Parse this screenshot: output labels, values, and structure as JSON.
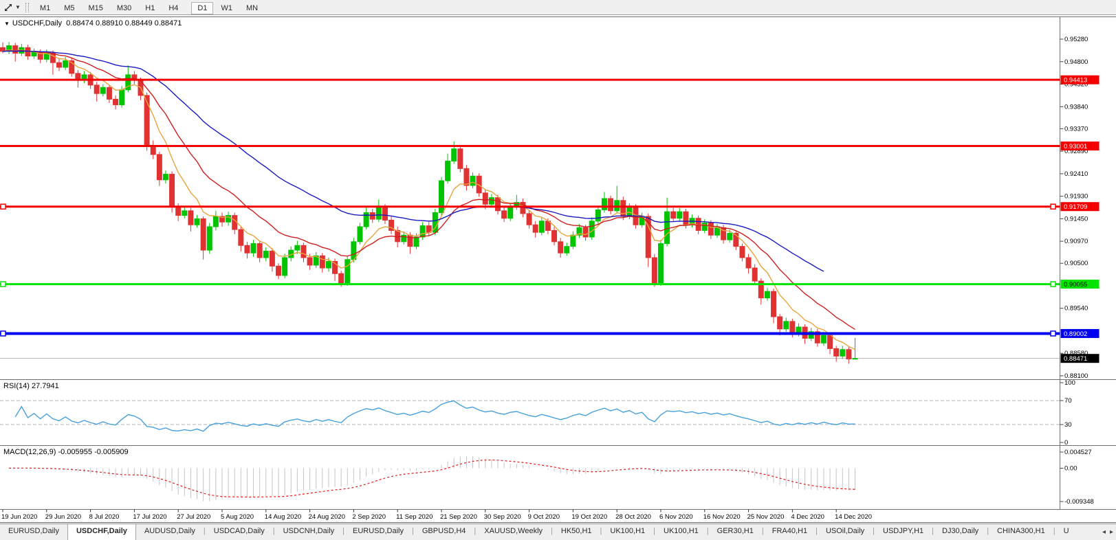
{
  "toolbar": {
    "timeframes": [
      "M1",
      "M5",
      "M15",
      "M30",
      "H1",
      "H4",
      "D1",
      "W1",
      "MN"
    ],
    "active": "D1",
    "cursor_tool_icon": "chart-cursor-icon"
  },
  "info_line": {
    "symbol": "USDCHF,Daily",
    "ohlc_text": "0.88474 0.88910 0.88449 0.88471"
  },
  "chart_data": {
    "type": "candlestick",
    "symbol": "USDCHF",
    "timeframe": "Daily",
    "ohlc_display": {
      "open": "0.88474",
      "high": "0.88910",
      "low": "0.88449",
      "close": "0.88471"
    },
    "bull_color": "#00c400",
    "bear_color": "#e03232",
    "x_ticks": [
      "19 Jun 2020",
      "29 Jun 2020",
      "8 Jul 2020",
      "17 Jul 2020",
      "27 Jul 2020",
      "5 Aug 2020",
      "14 Aug 2020",
      "24 Aug 2020",
      "2 Sep 2020",
      "11 Sep 2020",
      "21 Sep 2020",
      "30 Sep 2020",
      "9 Oct 2020",
      "19 Oct 2020",
      "28 Oct 2020",
      "6 Nov 2020",
      "16 Nov 2020",
      "25 Nov 2020",
      "4 Dec 2020",
      "14 Dec 2020"
    ],
    "bars_per_tick": 7,
    "y_ticks": [
      "0.95280",
      "0.94800",
      "0.94320",
      "0.93840",
      "0.93370",
      "0.92890",
      "0.92410",
      "0.91930",
      "0.91450",
      "0.90970",
      "0.90500",
      "0.89540",
      "0.88580",
      "0.88100"
    ],
    "candles": [
      [
        0.951,
        0.9521,
        0.9498,
        0.9502
      ],
      [
        0.9502,
        0.9522,
        0.9496,
        0.9514
      ],
      [
        0.9514,
        0.952,
        0.948,
        0.9498
      ],
      [
        0.9498,
        0.9518,
        0.9492,
        0.951
      ],
      [
        0.951,
        0.9516,
        0.9484,
        0.9492
      ],
      [
        0.9492,
        0.9508,
        0.9486,
        0.95
      ],
      [
        0.95,
        0.9506,
        0.9477,
        0.9485
      ],
      [
        0.9485,
        0.9506,
        0.9479,
        0.9498
      ],
      [
        0.9498,
        0.9504,
        0.9452,
        0.9478
      ],
      [
        0.9478,
        0.9486,
        0.946,
        0.9468
      ],
      [
        0.9468,
        0.949,
        0.9462,
        0.9482
      ],
      [
        0.9482,
        0.9488,
        0.9448,
        0.9455
      ],
      [
        0.9455,
        0.9462,
        0.9425,
        0.944
      ],
      [
        0.944,
        0.946,
        0.9434,
        0.9452
      ],
      [
        0.9452,
        0.9458,
        0.9422,
        0.943
      ],
      [
        0.943,
        0.9437,
        0.9395,
        0.9412
      ],
      [
        0.9412,
        0.9432,
        0.9406,
        0.9425
      ],
      [
        0.9425,
        0.9431,
        0.9392,
        0.94
      ],
      [
        0.94,
        0.9408,
        0.9378,
        0.9388
      ],
      [
        0.9388,
        0.9428,
        0.9382,
        0.942
      ],
      [
        0.942,
        0.9472,
        0.9415,
        0.9452
      ],
      [
        0.9452,
        0.946,
        0.9432,
        0.944
      ],
      [
        0.944,
        0.9446,
        0.9398,
        0.9408
      ],
      [
        0.9408,
        0.9414,
        0.929,
        0.93
      ],
      [
        0.93,
        0.9312,
        0.9272,
        0.9282
      ],
      [
        0.9282,
        0.9288,
        0.9215,
        0.9228
      ],
      [
        0.9228,
        0.9248,
        0.922,
        0.924
      ],
      [
        0.924,
        0.9246,
        0.9158,
        0.917
      ],
      [
        0.917,
        0.9178,
        0.914,
        0.9152
      ],
      [
        0.9152,
        0.9172,
        0.9146,
        0.9162
      ],
      [
        0.9162,
        0.9168,
        0.9118,
        0.9132
      ],
      [
        0.9132,
        0.9153,
        0.9126,
        0.9145
      ],
      [
        0.9145,
        0.915,
        0.9058,
        0.9078
      ],
      [
        0.9078,
        0.9136,
        0.907,
        0.9128
      ],
      [
        0.9128,
        0.9162,
        0.912,
        0.915
      ],
      [
        0.915,
        0.9158,
        0.9128,
        0.9138
      ],
      [
        0.9138,
        0.916,
        0.913,
        0.9152
      ],
      [
        0.9152,
        0.9158,
        0.9112,
        0.9122
      ],
      [
        0.9122,
        0.9128,
        0.9075,
        0.9088
      ],
      [
        0.9088,
        0.9096,
        0.906,
        0.9072
      ],
      [
        0.9072,
        0.91,
        0.9064,
        0.9092
      ],
      [
        0.9092,
        0.9098,
        0.9052,
        0.9062
      ],
      [
        0.9062,
        0.9084,
        0.9054,
        0.9076
      ],
      [
        0.9076,
        0.9082,
        0.9032,
        0.9044
      ],
      [
        0.9044,
        0.905,
        0.9016,
        0.9024
      ],
      [
        0.9024,
        0.907,
        0.9018,
        0.9062
      ],
      [
        0.9062,
        0.9086,
        0.9054,
        0.9078
      ],
      [
        0.9078,
        0.9098,
        0.907,
        0.9088
      ],
      [
        0.9088,
        0.9094,
        0.9052,
        0.9062
      ],
      [
        0.9062,
        0.907,
        0.9036,
        0.9046
      ],
      [
        0.9046,
        0.9074,
        0.904,
        0.9066
      ],
      [
        0.9066,
        0.9072,
        0.903,
        0.904
      ],
      [
        0.904,
        0.9062,
        0.9032,
        0.9054
      ],
      [
        0.9054,
        0.906,
        0.9012,
        0.9028
      ],
      [
        0.9028,
        0.9034,
        0.9,
        0.9008
      ],
      [
        0.9008,
        0.9066,
        0.9002,
        0.9058
      ],
      [
        0.9058,
        0.9104,
        0.9052,
        0.9096
      ],
      [
        0.9096,
        0.9136,
        0.909,
        0.9128
      ],
      [
        0.9128,
        0.9172,
        0.9122,
        0.9158
      ],
      [
        0.9158,
        0.9166,
        0.9136,
        0.9144
      ],
      [
        0.9144,
        0.9186,
        0.9138,
        0.917
      ],
      [
        0.917,
        0.9176,
        0.9134,
        0.9142
      ],
      [
        0.9142,
        0.915,
        0.9112,
        0.912
      ],
      [
        0.912,
        0.9128,
        0.9084,
        0.9096
      ],
      [
        0.9096,
        0.9118,
        0.909,
        0.911
      ],
      [
        0.911,
        0.9116,
        0.907,
        0.9086
      ],
      [
        0.9086,
        0.9114,
        0.908,
        0.9106
      ],
      [
        0.9106,
        0.9138,
        0.91,
        0.913
      ],
      [
        0.913,
        0.9138,
        0.9108,
        0.9116
      ],
      [
        0.9116,
        0.9166,
        0.911,
        0.9158
      ],
      [
        0.9158,
        0.9234,
        0.9152,
        0.9226
      ],
      [
        0.9226,
        0.9284,
        0.922,
        0.9268
      ],
      [
        0.9268,
        0.931,
        0.9262,
        0.9294
      ],
      [
        0.9294,
        0.93,
        0.9244,
        0.9252
      ],
      [
        0.9252,
        0.926,
        0.9205,
        0.9216
      ],
      [
        0.9216,
        0.9244,
        0.921,
        0.9236
      ],
      [
        0.9236,
        0.9242,
        0.9192,
        0.92
      ],
      [
        0.92,
        0.9208,
        0.9165,
        0.9176
      ],
      [
        0.9176,
        0.9198,
        0.917,
        0.919
      ],
      [
        0.919,
        0.9196,
        0.9154,
        0.9162
      ],
      [
        0.9162,
        0.917,
        0.9138,
        0.9146
      ],
      [
        0.9146,
        0.9178,
        0.914,
        0.917
      ],
      [
        0.917,
        0.9196,
        0.9164,
        0.918
      ],
      [
        0.918,
        0.9188,
        0.9148,
        0.9156
      ],
      [
        0.9156,
        0.9164,
        0.9124,
        0.9132
      ],
      [
        0.9132,
        0.914,
        0.9105,
        0.9116
      ],
      [
        0.9116,
        0.9148,
        0.911,
        0.914
      ],
      [
        0.914,
        0.9146,
        0.9112,
        0.912
      ],
      [
        0.912,
        0.9128,
        0.9088,
        0.9096
      ],
      [
        0.9096,
        0.9104,
        0.9062,
        0.9072
      ],
      [
        0.9072,
        0.9094,
        0.9066,
        0.9086
      ],
      [
        0.9086,
        0.9118,
        0.908,
        0.911
      ],
      [
        0.911,
        0.9134,
        0.9104,
        0.9126
      ],
      [
        0.9126,
        0.9132,
        0.9098,
        0.9106
      ],
      [
        0.9106,
        0.9148,
        0.91,
        0.914
      ],
      [
        0.914,
        0.9172,
        0.9134,
        0.9164
      ],
      [
        0.9164,
        0.9202,
        0.9158,
        0.9188
      ],
      [
        0.9188,
        0.9194,
        0.9154,
        0.9162
      ],
      [
        0.9162,
        0.9215,
        0.9156,
        0.9184
      ],
      [
        0.9184,
        0.9192,
        0.9142,
        0.915
      ],
      [
        0.915,
        0.9178,
        0.9144,
        0.917
      ],
      [
        0.917,
        0.9176,
        0.9124,
        0.9132
      ],
      [
        0.9132,
        0.9158,
        0.9126,
        0.915
      ],
      [
        0.915,
        0.9156,
        0.9042,
        0.9062
      ],
      [
        0.9062,
        0.907,
        0.9,
        0.9008
      ],
      [
        0.9008,
        0.91,
        0.9002,
        0.9092
      ],
      [
        0.9092,
        0.919,
        0.9086,
        0.916
      ],
      [
        0.916,
        0.9168,
        0.9138,
        0.9146
      ],
      [
        0.9146,
        0.9168,
        0.914,
        0.916
      ],
      [
        0.916,
        0.9166,
        0.9124,
        0.9132
      ],
      [
        0.9132,
        0.9154,
        0.9126,
        0.9146
      ],
      [
        0.9146,
        0.9152,
        0.9112,
        0.912
      ],
      [
        0.912,
        0.9144,
        0.9114,
        0.9136
      ],
      [
        0.9136,
        0.9142,
        0.9102,
        0.911
      ],
      [
        0.911,
        0.9134,
        0.9104,
        0.9126
      ],
      [
        0.9126,
        0.9132,
        0.9092,
        0.91
      ],
      [
        0.91,
        0.9122,
        0.9094,
        0.9114
      ],
      [
        0.9114,
        0.912,
        0.9078,
        0.9086
      ],
      [
        0.9086,
        0.9092,
        0.9054,
        0.9062
      ],
      [
        0.9062,
        0.907,
        0.9028,
        0.904
      ],
      [
        0.904,
        0.9048,
        0.9004,
        0.9012
      ],
      [
        0.9012,
        0.9018,
        0.8962,
        0.8976
      ],
      [
        0.8976,
        0.8998,
        0.897,
        0.899
      ],
      [
        0.899,
        0.8996,
        0.8922,
        0.8936
      ],
      [
        0.8936,
        0.8942,
        0.8896,
        0.891
      ],
      [
        0.891,
        0.8934,
        0.8904,
        0.8926
      ],
      [
        0.8926,
        0.8932,
        0.8892,
        0.89
      ],
      [
        0.89,
        0.8922,
        0.8894,
        0.8914
      ],
      [
        0.8914,
        0.892,
        0.8878,
        0.889
      ],
      [
        0.889,
        0.8912,
        0.8884,
        0.8904
      ],
      [
        0.8904,
        0.891,
        0.8872,
        0.888
      ],
      [
        0.888,
        0.8904,
        0.8874,
        0.8896
      ],
      [
        0.8896,
        0.8902,
        0.8856,
        0.8868
      ],
      [
        0.8868,
        0.8874,
        0.884,
        0.8852
      ],
      [
        0.8852,
        0.8874,
        0.8846,
        0.8866
      ],
      [
        0.8866,
        0.8872,
        0.8836,
        0.8846
      ],
      [
        0.8847,
        0.8891,
        0.8845,
        0.8847
      ]
    ],
    "moving_averages": [
      {
        "name": "ma-fast",
        "period": 7,
        "color": "#e8a33d",
        "end_offset": 0
      },
      {
        "name": "ma-mid",
        "period": 16,
        "color": "#cc2020",
        "end_offset": 0
      },
      {
        "name": "ma-slow",
        "period": 40,
        "color": "#1a1ac0",
        "end_offset": 5
      }
    ],
    "h_lines": [
      {
        "price": 0.94413,
        "label": "0.94413",
        "color": "#f50000",
        "text_color": "#ffffff",
        "width": 3,
        "selected": false
      },
      {
        "price": 0.93001,
        "label": "0.93001",
        "color": "#f50000",
        "text_color": "#ffffff",
        "width": 3,
        "selected": false
      },
      {
        "price": 0.91709,
        "label": "0.91709",
        "color": "#f50000",
        "text_color": "#ffffff",
        "width": 3,
        "selected": true
      },
      {
        "price": 0.90055,
        "label": "0.90055",
        "color": "#00e400",
        "text_color": "#000000",
        "width": 3,
        "selected": true
      },
      {
        "price": 0.89002,
        "label": "0.89002",
        "color": "#0000f0",
        "text_color": "#ffffff",
        "width": 4,
        "selected": true
      }
    ],
    "current_price": {
      "value": 0.88471,
      "label": "0.88471",
      "line_color": "#b2b2b2",
      "box_color": "#000000",
      "text_color": "#ffffff"
    },
    "rsi": {
      "label": "RSI(14) 27.7941",
      "period": 14,
      "color": "#46a0dc",
      "levels": [
        70,
        30
      ],
      "axis_labels": [
        {
          "text": "100",
          "value": 100
        },
        {
          "text": "70",
          "value": 70
        },
        {
          "text": "30",
          "value": 30
        },
        {
          "text": "0",
          "value": 0
        }
      ]
    },
    "macd": {
      "label": "MACD(12,26,9) -0.005955 -0.005909",
      "fast": 12,
      "slow": 26,
      "signal": 9,
      "histogram_color": "#c4c4c4",
      "signal_color": "#e01818",
      "axis_labels": [
        {
          "text": "0.004527",
          "value": 0.004527
        },
        {
          "text": "0.00",
          "value": 0
        },
        {
          "text": "-0.009348",
          "value": -0.009348
        }
      ]
    }
  },
  "tabs": {
    "items": [
      {
        "label": "EURUSD,Daily",
        "active": false
      },
      {
        "label": "USDCHF,Daily",
        "active": true
      },
      {
        "label": "AUDUSD,Daily",
        "active": false
      },
      {
        "label": "USDCAD,Daily",
        "active": false
      },
      {
        "label": "USDCNH,Daily",
        "active": false
      },
      {
        "label": "EURUSD,Daily",
        "active": false
      },
      {
        "label": "GBPUSD,H4",
        "active": false
      },
      {
        "label": "XAUUSD,Weekly",
        "active": false
      },
      {
        "label": "HK50,H1",
        "active": false
      },
      {
        "label": "UK100,H1",
        "active": false
      },
      {
        "label": "UK100,H1",
        "active": false
      },
      {
        "label": "GER30,H1",
        "active": false
      },
      {
        "label": "FRA40,H1",
        "active": false
      },
      {
        "label": "USOil,Daily",
        "active": false
      },
      {
        "label": "USDJPY,H1",
        "active": false
      },
      {
        "label": "DJ30,Daily",
        "active": false
      },
      {
        "label": "CHINA300,H1",
        "active": false
      },
      {
        "label": "U",
        "active": false,
        "truncated": true
      }
    ],
    "scroll_left": "◂",
    "scroll_right": "▸"
  }
}
